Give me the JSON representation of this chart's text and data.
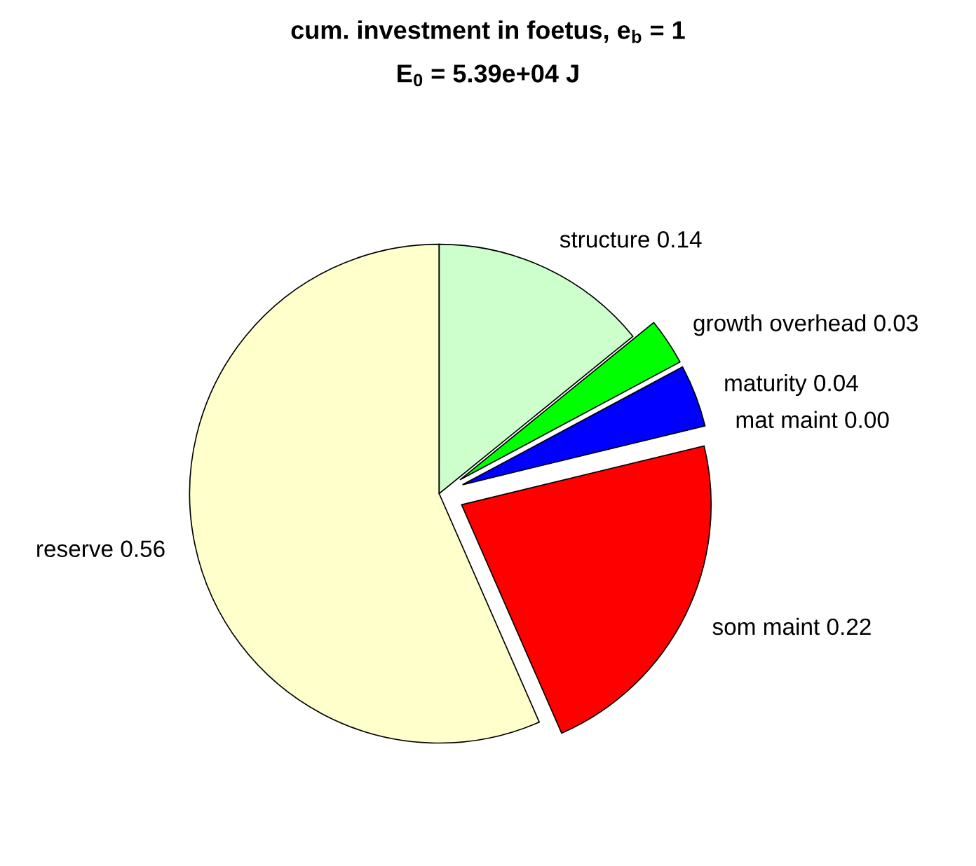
{
  "chart_data": {
    "type": "pie",
    "title": "cum. investment in foetus, e$_{b}$ = 1",
    "subtitle": "E$_{0}$ = 5.39e+04 J",
    "categories": [
      "reserve",
      "som maint",
      "mat maint",
      "maturity",
      "growth overhead",
      "structure"
    ],
    "values": [
      0.56,
      0.22,
      0.0,
      0.04,
      0.03,
      0.14
    ],
    "value_labels": [
      "0.56",
      "0.22",
      "0.00",
      "0.04",
      "0.03",
      "0.14"
    ],
    "colors": [
      "#ffffcc",
      "#ff0000",
      "#ffffff",
      "#0000ff",
      "#00ff00",
      "#ccffcc"
    ],
    "legend": false
  }
}
